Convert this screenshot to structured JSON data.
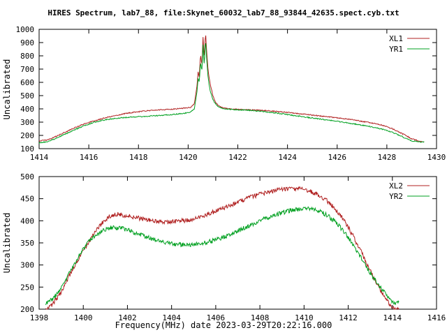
{
  "chart_data": [
    {
      "type": "line",
      "title": "HIRES Spectrum, lab7_88, file:Skynet_60032_lab7_88_93844_42635.spect.cyb.txt",
      "xlabel": "",
      "ylabel": "Uncalibrated",
      "xlim": [
        1414,
        1430
      ],
      "ylim": [
        100,
        1000
      ],
      "xticks": [
        1414,
        1416,
        1418,
        1420,
        1422,
        1424,
        1426,
        1428,
        1430
      ],
      "yticks": [
        100,
        200,
        300,
        400,
        500,
        600,
        700,
        800,
        900,
        1000
      ],
      "grid": false,
      "legend_position": "top-right",
      "series": [
        {
          "name": "XL1",
          "color": "#b02020",
          "noise": 4,
          "points": [
            [
              1414.0,
              158
            ],
            [
              1414.3,
              165
            ],
            [
              1414.6,
              185
            ],
            [
              1415.0,
              220
            ],
            [
              1415.4,
              255
            ],
            [
              1415.8,
              285
            ],
            [
              1416.2,
              310
            ],
            [
              1416.6,
              330
            ],
            [
              1417.0,
              348
            ],
            [
              1417.4,
              362
            ],
            [
              1417.8,
              374
            ],
            [
              1418.2,
              383
            ],
            [
              1418.6,
              390
            ],
            [
              1419.0,
              394
            ],
            [
              1419.4,
              398
            ],
            [
              1419.8,
              404
            ],
            [
              1420.1,
              412
            ],
            [
              1420.25,
              440
            ],
            [
              1420.35,
              560
            ],
            [
              1420.4,
              680
            ],
            [
              1420.45,
              640
            ],
            [
              1420.5,
              820
            ],
            [
              1420.55,
              720
            ],
            [
              1420.6,
              950
            ],
            [
              1420.65,
              780
            ],
            [
              1420.7,
              985
            ],
            [
              1420.75,
              820
            ],
            [
              1420.8,
              700
            ],
            [
              1420.85,
              630
            ],
            [
              1420.9,
              575
            ],
            [
              1421.0,
              500
            ],
            [
              1421.1,
              450
            ],
            [
              1421.25,
              420
            ],
            [
              1421.5,
              405
            ],
            [
              1421.8,
              398
            ],
            [
              1422.2,
              395
            ],
            [
              1422.6,
              392
            ],
            [
              1423.0,
              388
            ],
            [
              1423.4,
              383
            ],
            [
              1423.8,
              377
            ],
            [
              1424.2,
              370
            ],
            [
              1424.6,
              362
            ],
            [
              1425.0,
              353
            ],
            [
              1425.4,
              345
            ],
            [
              1425.8,
              337
            ],
            [
              1426.2,
              328
            ],
            [
              1426.6,
              318
            ],
            [
              1427.0,
              306
            ],
            [
              1427.4,
              294
            ],
            [
              1427.8,
              278
            ],
            [
              1428.2,
              252
            ],
            [
              1428.6,
              215
            ],
            [
              1429.0,
              175
            ],
            [
              1429.3,
              157
            ],
            [
              1429.5,
              150
            ]
          ]
        },
        {
          "name": "YR1",
          "color": "#00a020",
          "noise": 4,
          "points": [
            [
              1414.0,
              143
            ],
            [
              1414.3,
              152
            ],
            [
              1414.6,
              172
            ],
            [
              1415.0,
              205
            ],
            [
              1415.4,
              240
            ],
            [
              1415.8,
              272
            ],
            [
              1416.2,
              298
            ],
            [
              1416.6,
              316
            ],
            [
              1417.0,
              327
            ],
            [
              1417.4,
              334
            ],
            [
              1417.8,
              339
            ],
            [
              1418.2,
              343
            ],
            [
              1418.6,
              347
            ],
            [
              1419.0,
              352
            ],
            [
              1419.4,
              358
            ],
            [
              1419.8,
              366
            ],
            [
              1420.1,
              376
            ],
            [
              1420.25,
              400
            ],
            [
              1420.35,
              520
            ],
            [
              1420.4,
              630
            ],
            [
              1420.45,
              600
            ],
            [
              1420.5,
              760
            ],
            [
              1420.55,
              680
            ],
            [
              1420.6,
              890
            ],
            [
              1420.65,
              720
            ],
            [
              1420.7,
              925
            ],
            [
              1420.75,
              760
            ],
            [
              1420.8,
              650
            ],
            [
              1420.85,
              575
            ],
            [
              1420.9,
              525
            ],
            [
              1421.0,
              470
            ],
            [
              1421.1,
              438
            ],
            [
              1421.25,
              412
            ],
            [
              1421.5,
              400
            ],
            [
              1421.8,
              395
            ],
            [
              1422.2,
              392
            ],
            [
              1422.6,
              388
            ],
            [
              1423.0,
              381
            ],
            [
              1423.4,
              372
            ],
            [
              1423.8,
              362
            ],
            [
              1424.2,
              352
            ],
            [
              1424.6,
              342
            ],
            [
              1425.0,
              331
            ],
            [
              1425.4,
              321
            ],
            [
              1425.8,
              311
            ],
            [
              1426.2,
              300
            ],
            [
              1426.6,
              289
            ],
            [
              1427.0,
              277
            ],
            [
              1427.4,
              264
            ],
            [
              1427.8,
              248
            ],
            [
              1428.2,
              224
            ],
            [
              1428.6,
              192
            ],
            [
              1429.0,
              160
            ],
            [
              1429.3,
              152
            ],
            [
              1429.5,
              150
            ]
          ]
        }
      ]
    },
    {
      "type": "line",
      "title": "",
      "xlabel": "Frequency(MHz) date 2023-03-29T20:22:16.000",
      "ylabel": "Uncalibrated",
      "xlim": [
        1398,
        1416
      ],
      "ylim": [
        200,
        500
      ],
      "xticks": [
        1398,
        1400,
        1402,
        1404,
        1406,
        1408,
        1410,
        1412,
        1414,
        1416
      ],
      "yticks": [
        200,
        250,
        300,
        350,
        400,
        450,
        500
      ],
      "grid": false,
      "legend_position": "top-right",
      "series": [
        {
          "name": "XL2",
          "color": "#b02020",
          "noise": 5,
          "points": [
            [
              1398.3,
              200
            ],
            [
              1398.6,
              210
            ],
            [
              1399.0,
              240
            ],
            [
              1399.4,
              278
            ],
            [
              1399.8,
              315
            ],
            [
              1400.2,
              348
            ],
            [
              1400.6,
              380
            ],
            [
              1401.0,
              403
            ],
            [
              1401.3,
              413
            ],
            [
              1401.6,
              415
            ],
            [
              1401.9,
              412
            ],
            [
              1402.3,
              408
            ],
            [
              1402.7,
              404
            ],
            [
              1403.1,
              400
            ],
            [
              1403.5,
              398
            ],
            [
              1404.0,
              398
            ],
            [
              1404.5,
              400
            ],
            [
              1405.0,
              404
            ],
            [
              1405.5,
              412
            ],
            [
              1406.0,
              422
            ],
            [
              1406.5,
              432
            ],
            [
              1407.0,
              442
            ],
            [
              1407.5,
              452
            ],
            [
              1408.0,
              460
            ],
            [
              1408.5,
              466
            ],
            [
              1409.0,
              471
            ],
            [
              1409.4,
              473
            ],
            [
              1409.8,
              472
            ],
            [
              1410.2,
              468
            ],
            [
              1410.6,
              460
            ],
            [
              1411.0,
              447
            ],
            [
              1411.4,
              428
            ],
            [
              1411.8,
              402
            ],
            [
              1412.2,
              368
            ],
            [
              1412.6,
              328
            ],
            [
              1413.0,
              286
            ],
            [
              1413.4,
              248
            ],
            [
              1413.8,
              216
            ],
            [
              1414.1,
              200
            ],
            [
              1414.3,
              203
            ]
          ]
        },
        {
          "name": "YR2",
          "color": "#00a020",
          "noise": 5,
          "points": [
            [
              1398.3,
              214
            ],
            [
              1398.6,
              222
            ],
            [
              1399.0,
              248
            ],
            [
              1399.4,
              285
            ],
            [
              1399.8,
              320
            ],
            [
              1400.2,
              350
            ],
            [
              1400.6,
              370
            ],
            [
              1401.0,
              381
            ],
            [
              1401.3,
              385
            ],
            [
              1401.6,
              384
            ],
            [
              1401.9,
              381
            ],
            [
              1402.3,
              374
            ],
            [
              1402.7,
              366
            ],
            [
              1403.1,
              359
            ],
            [
              1403.5,
              353
            ],
            [
              1404.0,
              348
            ],
            [
              1404.5,
              346
            ],
            [
              1405.0,
              346
            ],
            [
              1405.5,
              350
            ],
            [
              1406.0,
              357
            ],
            [
              1406.5,
              366
            ],
            [
              1407.0,
              377
            ],
            [
              1407.5,
              389
            ],
            [
              1408.0,
              400
            ],
            [
              1408.5,
              410
            ],
            [
              1409.0,
              418
            ],
            [
              1409.4,
              424
            ],
            [
              1409.8,
              427
            ],
            [
              1410.2,
              428
            ],
            [
              1410.6,
              424
            ],
            [
              1411.0,
              414
            ],
            [
              1411.4,
              398
            ],
            [
              1411.8,
              376
            ],
            [
              1412.2,
              347
            ],
            [
              1412.6,
              315
            ],
            [
              1413.0,
              282
            ],
            [
              1413.4,
              252
            ],
            [
              1413.8,
              228
            ],
            [
              1414.1,
              213
            ],
            [
              1414.3,
              216
            ]
          ]
        }
      ]
    }
  ]
}
